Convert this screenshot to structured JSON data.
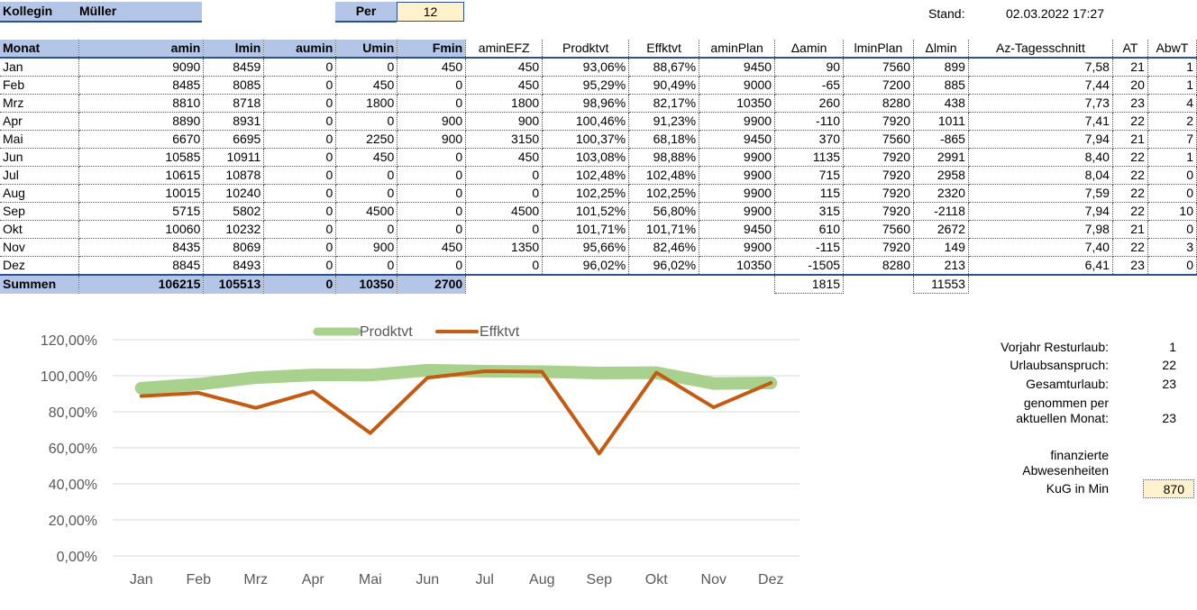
{
  "header": {
    "kollegin_label": "Kollegin",
    "kollegin_name": "Müller",
    "per_label": "Per",
    "per_value": "12",
    "stand_label": "Stand:",
    "stand_value": "02.03.2022 17:27"
  },
  "table": {
    "columns": [
      "Monat",
      "amin",
      "lmin",
      "aumin",
      "Umin",
      "Fmin",
      "aminEFZ",
      "Prodktvt",
      "Effktvt",
      "aminPlan",
      "Δamin",
      "lminPlan",
      "Δlmin",
      "Az-Tagesschnitt",
      "AT",
      "AbwT"
    ],
    "rows": [
      [
        "Jan",
        "9090",
        "8459",
        "0",
        "0",
        "450",
        "450",
        "93,06%",
        "88,67%",
        "9450",
        "90",
        "7560",
        "899",
        "7,58",
        "21",
        "1"
      ],
      [
        "Feb",
        "8485",
        "8085",
        "0",
        "450",
        "0",
        "450",
        "95,29%",
        "90,49%",
        "9000",
        "-65",
        "7200",
        "885",
        "7,44",
        "20",
        "1"
      ],
      [
        "Mrz",
        "8810",
        "8718",
        "0",
        "1800",
        "0",
        "1800",
        "98,96%",
        "82,17%",
        "10350",
        "260",
        "8280",
        "438",
        "7,73",
        "23",
        "4"
      ],
      [
        "Apr",
        "8890",
        "8931",
        "0",
        "0",
        "900",
        "900",
        "100,46%",
        "91,23%",
        "9900",
        "-110",
        "7920",
        "1011",
        "7,41",
        "22",
        "2"
      ],
      [
        "Mai",
        "6670",
        "6695",
        "0",
        "2250",
        "900",
        "3150",
        "100,37%",
        "68,18%",
        "9450",
        "370",
        "7560",
        "-865",
        "7,94",
        "21",
        "7"
      ],
      [
        "Jun",
        "10585",
        "10911",
        "0",
        "450",
        "0",
        "450",
        "103,08%",
        "98,88%",
        "9900",
        "1135",
        "7920",
        "2991",
        "8,40",
        "22",
        "1"
      ],
      [
        "Jul",
        "10615",
        "10878",
        "0",
        "0",
        "0",
        "0",
        "102,48%",
        "102,48%",
        "9900",
        "715",
        "7920",
        "2958",
        "8,04",
        "22",
        "0"
      ],
      [
        "Aug",
        "10015",
        "10240",
        "0",
        "0",
        "0",
        "0",
        "102,25%",
        "102,25%",
        "9900",
        "115",
        "7920",
        "2320",
        "7,59",
        "22",
        "0"
      ],
      [
        "Sep",
        "5715",
        "5802",
        "0",
        "4500",
        "0",
        "4500",
        "101,52%",
        "56,80%",
        "9900",
        "315",
        "7920",
        "-2118",
        "7,94",
        "22",
        "10"
      ],
      [
        "Okt",
        "10060",
        "10232",
        "0",
        "0",
        "0",
        "0",
        "101,71%",
        "101,71%",
        "9450",
        "610",
        "7560",
        "2672",
        "7,98",
        "21",
        "0"
      ],
      [
        "Nov",
        "8435",
        "8069",
        "0",
        "900",
        "450",
        "1350",
        "95,66%",
        "82,46%",
        "9900",
        "-115",
        "7920",
        "149",
        "7,40",
        "22",
        "3"
      ],
      [
        "Dez",
        "8845",
        "8493",
        "0",
        "0",
        "0",
        "0",
        "96,02%",
        "96,02%",
        "10350",
        "-1505",
        "8280",
        "213",
        "6,41",
        "23",
        "0"
      ]
    ],
    "totals": {
      "label": "Summen",
      "amin": "106215",
      "lmin": "105513",
      "aumin": "0",
      "Umin": "10350",
      "Fmin": "2700",
      "delta_amin": "1815",
      "delta_lmin": "11553"
    }
  },
  "side": {
    "vorjahr_label": "Vorjahr Resturlaub:",
    "vorjahr_value": "1",
    "anspruch_label": "Urlaubsanspruch:",
    "anspruch_value": "22",
    "gesamt_label": "Gesamturlaub:",
    "gesamt_value": "23",
    "genommen_label_1": "genommen per",
    "genommen_label_2": "aktuellen Monat:",
    "genommen_value": "23",
    "fin_label_1": "finanzierte",
    "fin_label_2": "Abwesenheiten",
    "kug_label": "KuG in Min",
    "kug_value": "870"
  },
  "chart_data": {
    "type": "line",
    "categories": [
      "Jan",
      "Feb",
      "Mrz",
      "Apr",
      "Mai",
      "Jun",
      "Jul",
      "Aug",
      "Sep",
      "Okt",
      "Nov",
      "Dez"
    ],
    "series": [
      {
        "name": "Prodktvt",
        "values": [
          93.06,
          95.29,
          98.96,
          100.46,
          100.37,
          103.08,
          102.48,
          102.25,
          101.52,
          101.71,
          95.66,
          96.02
        ],
        "color": "#a9d18e"
      },
      {
        "name": "Effktvt",
        "values": [
          88.67,
          90.49,
          82.17,
          91.23,
          68.18,
          98.88,
          102.48,
          102.25,
          56.8,
          101.71,
          82.46,
          96.02
        ],
        "color": "#c55a11"
      }
    ],
    "ylim": [
      0,
      120
    ],
    "yticks": [
      "0,00%",
      "20,00%",
      "40,00%",
      "60,00%",
      "80,00%",
      "100,00%",
      "120,00%"
    ],
    "grid": true,
    "legend": "top"
  }
}
